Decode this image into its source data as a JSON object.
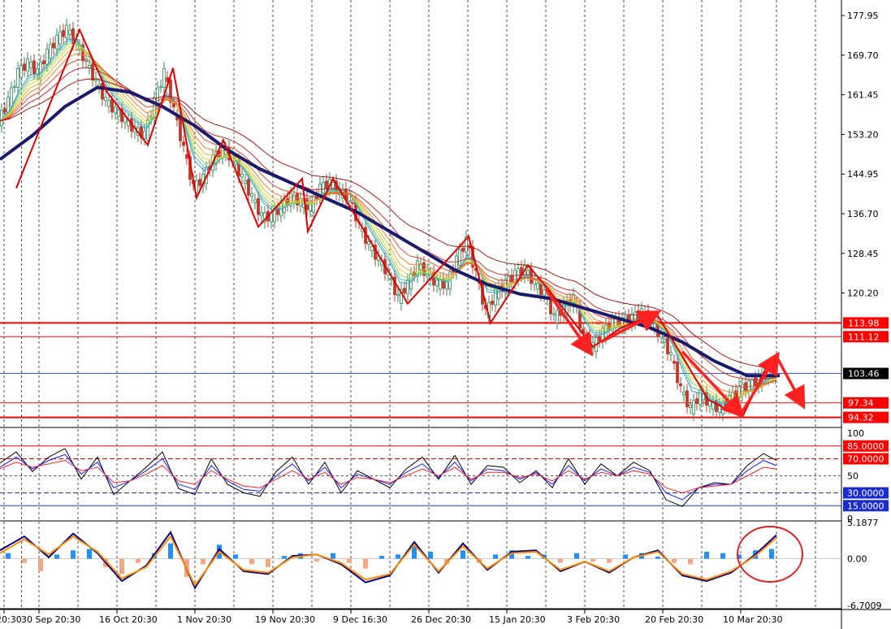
{
  "colors": {
    "background": "#ffffff",
    "grid": "#000000",
    "bull_candle": "#2e8b57",
    "bear_candle": "#c0392b",
    "slow_ma": "#1a1a6e",
    "zigzag": "#e00000",
    "hline_red": "#ff0000",
    "hline_blue": "#0000cc",
    "osc_fast": "#000000",
    "osc_mid": "#1a1aff",
    "osc_slow": "#ff2222",
    "hist_up": "#1e90ff",
    "hist_down": "#f4a582",
    "macd_line": "#00008b",
    "signal_line": "#ff8c00",
    "annotation": "#ff2020"
  },
  "chart_data": [
    {
      "type": "line",
      "panel": "price",
      "ylim": [
        92.9,
        180.5
      ],
      "y_ticks": [
        177.95,
        169.7,
        161.45,
        153.2,
        144.95,
        136.7,
        128.45,
        120.2
      ],
      "x_ticks": [
        "20:30",
        "30 Sep 20:30",
        "16 Oct 20:30",
        "1 Nov 20:30",
        "19 Nov 20:30",
        "9 Dec 16:30",
        "26 Dec 20:30",
        "15 Jan 20:30",
        "3 Feb 20:30",
        "20 Feb 20:30",
        "10 Mar 20:30"
      ],
      "price_labels": [
        {
          "value": 113.98,
          "text": "113.98",
          "style": "red"
        },
        {
          "value": 111.12,
          "text": "111.12",
          "style": "red"
        },
        {
          "value": 103.46,
          "text": "103.46",
          "style": "current"
        },
        {
          "value": 97.34,
          "text": "97.34",
          "style": "red"
        },
        {
          "value": 94.32,
          "text": "94.32",
          "style": "red"
        }
      ],
      "horizontal_lines": [
        {
          "value": 113.98,
          "width": 2
        },
        {
          "value": 111.12,
          "width": 1
        },
        {
          "value": 103.46,
          "width": 1,
          "color": "blue"
        },
        {
          "value": 97.34,
          "width": 1
        },
        {
          "value": 94.32,
          "width": 2
        }
      ],
      "series": [
        {
          "role": "price_close",
          "x": [
            0,
            12,
            24,
            36,
            48,
            60,
            72,
            84,
            96,
            108,
            120,
            132,
            144,
            156,
            168,
            180,
            192,
            204,
            216,
            228,
            240,
            252,
            264,
            276,
            288,
            300,
            312,
            324,
            336,
            348,
            360,
            372,
            384,
            396,
            408,
            420,
            432,
            444,
            456,
            468,
            480,
            492,
            504,
            516,
            528,
            540,
            552,
            564,
            576,
            588,
            600,
            612,
            624,
            636,
            648,
            660,
            672,
            684,
            696,
            708,
            720,
            732,
            744,
            756,
            768,
            780,
            792,
            804,
            816,
            828,
            840,
            852,
            864,
            876,
            888,
            900,
            912,
            924,
            936,
            948,
            956
          ],
          "values": [
            156,
            160,
            166,
            168,
            166,
            170,
            173,
            175,
            172,
            168,
            164,
            160,
            158,
            156,
            154,
            153,
            160,
            166,
            158,
            150,
            142,
            144,
            148,
            150,
            148,
            144,
            140,
            136,
            136,
            138,
            140,
            139,
            138,
            142,
            143,
            141,
            140,
            134,
            130,
            127,
            124,
            119,
            122,
            126,
            124,
            122,
            122,
            127,
            131,
            124,
            116,
            120,
            122,
            124,
            125,
            122,
            120,
            115,
            117,
            119,
            111,
            109,
            112,
            114,
            114,
            115,
            116,
            114,
            111,
            107,
            100,
            96,
            99,
            97,
            96,
            98,
            100,
            101,
            102,
            104,
            103.46
          ]
        },
        {
          "role": "slow_ma",
          "x": [
            0,
            40,
            80,
            120,
            160,
            200,
            240,
            280,
            320,
            360,
            400,
            440,
            480,
            520,
            560,
            600,
            640,
            680,
            720,
            760,
            800,
            840,
            880,
            920,
            960
          ],
          "values": [
            148,
            153,
            159,
            163,
            162,
            159,
            155,
            150,
            146,
            143,
            140,
            137,
            133,
            129,
            125,
            122,
            120,
            119,
            117,
            115,
            113,
            110,
            106,
            103,
            103
          ]
        },
        {
          "role": "zigzag",
          "x": [
            20,
            98,
            132,
            182,
            213,
            242,
            275,
            318,
            372,
            379,
            410,
            502,
            577,
            604,
            650,
            675,
            730,
            765,
            808,
            872,
            914,
            947
          ],
          "values": [
            142,
            175,
            162,
            151,
            167,
            140,
            152,
            134,
            144,
            133,
            144,
            118,
            132,
            114,
            126,
            121,
            109,
            113,
            116,
            98,
            94.4,
            106
          ]
        }
      ],
      "annotation_arrows": [
        {
          "from": [
            672,
            121
          ],
          "to": [
            726,
            108
          ]
        },
        {
          "from": [
            740,
            110
          ],
          "to": [
            808,
            116
          ]
        },
        {
          "from": [
            840,
            108
          ],
          "to": [
            912,
            95
          ]
        },
        {
          "from": [
            912,
            95
          ],
          "to": [
            956,
            107
          ]
        },
        {
          "from": [
            956,
            107
          ],
          "to": [
            988,
            97
          ]
        }
      ]
    },
    {
      "type": "line",
      "panel": "oscillator",
      "ylim": [
        0,
        100
      ],
      "y_ticks": [
        100,
        50,
        0
      ],
      "level_labels": [
        {
          "value": 85,
          "text": "85.0000",
          "style": "red"
        },
        {
          "value": 70,
          "text": "70.0000",
          "style": "red"
        },
        {
          "value": 30,
          "text": "30.0000",
          "style": "blue"
        },
        {
          "value": 15,
          "text": "15.0000",
          "style": "blue"
        }
      ],
      "series": [
        {
          "role": "fast",
          "x": [
            0,
            20,
            40,
            60,
            80,
            100,
            120,
            140,
            160,
            180,
            200,
            220,
            240,
            260,
            280,
            300,
            320,
            340,
            360,
            380,
            400,
            420,
            440,
            460,
            480,
            500,
            520,
            540,
            560,
            580,
            600,
            620,
            640,
            660,
            680,
            700,
            720,
            740,
            760,
            780,
            800,
            820,
            840,
            860,
            880,
            900,
            920,
            940,
            956
          ],
          "values": [
            65,
            78,
            55,
            72,
            82,
            46,
            72,
            28,
            44,
            60,
            78,
            35,
            28,
            70,
            40,
            30,
            26,
            55,
            72,
            40,
            66,
            30,
            56,
            46,
            36,
            58,
            72,
            46,
            74,
            40,
            62,
            60,
            42,
            56,
            36,
            70,
            40,
            64,
            50,
            66,
            56,
            22,
            14,
            36,
            42,
            40,
            62,
            76,
            68
          ]
        },
        {
          "role": "mid",
          "x": [
            0,
            20,
            40,
            60,
            80,
            100,
            120,
            140,
            160,
            180,
            200,
            220,
            240,
            260,
            280,
            300,
            320,
            340,
            360,
            380,
            400,
            420,
            440,
            460,
            480,
            500,
            520,
            540,
            560,
            580,
            600,
            620,
            640,
            660,
            680,
            700,
            720,
            740,
            760,
            780,
            800,
            820,
            840,
            860,
            880,
            900,
            920,
            940,
            956
          ],
          "values": [
            60,
            72,
            58,
            68,
            75,
            52,
            66,
            36,
            44,
            56,
            70,
            40,
            34,
            62,
            44,
            34,
            32,
            50,
            64,
            44,
            60,
            36,
            52,
            46,
            40,
            54,
            64,
            48,
            66,
            44,
            58,
            56,
            46,
            54,
            40,
            62,
            44,
            58,
            50,
            60,
            54,
            30,
            22,
            36,
            40,
            40,
            56,
            68,
            62
          ]
        },
        {
          "role": "slow",
          "x": [
            0,
            20,
            40,
            60,
            80,
            100,
            120,
            140,
            160,
            180,
            200,
            220,
            240,
            260,
            280,
            300,
            320,
            340,
            360,
            380,
            400,
            420,
            440,
            460,
            480,
            500,
            520,
            540,
            560,
            580,
            600,
            620,
            640,
            660,
            680,
            700,
            720,
            740,
            760,
            780,
            800,
            820,
            840,
            860,
            880,
            900,
            920,
            940,
            956
          ],
          "values": [
            58,
            66,
            60,
            64,
            68,
            56,
            60,
            42,
            44,
            52,
            62,
            44,
            40,
            56,
            46,
            38,
            36,
            46,
            56,
            46,
            54,
            40,
            48,
            46,
            42,
            50,
            58,
            50,
            60,
            46,
            54,
            54,
            48,
            52,
            44,
            56,
            46,
            54,
            50,
            56,
            52,
            36,
            30,
            36,
            38,
            40,
            50,
            60,
            58
          ]
        }
      ]
    },
    {
      "type": "bar",
      "panel": "macd",
      "ylim": [
        -6.7009,
        5.1877
      ],
      "y_ticks": [
        5.1877,
        0.0,
        -6.7009
      ],
      "y_tick_labels": [
        "5.1877",
        "0.00",
        "-6.7009"
      ],
      "histogram": {
        "x": [
          10,
          30,
          50,
          70,
          90,
          110,
          130,
          150,
          170,
          190,
          210,
          230,
          250,
          270,
          290,
          310,
          330,
          350,
          370,
          390,
          410,
          430,
          450,
          470,
          490,
          510,
          530,
          550,
          570,
          590,
          610,
          630,
          650,
          670,
          690,
          710,
          730,
          750,
          770,
          790,
          810,
          830,
          850,
          870,
          890,
          910,
          930,
          950
        ],
        "values": [
          0.8,
          -0.6,
          -1.8,
          0.6,
          1.2,
          1.4,
          -1.2,
          -2.2,
          -0.6,
          0.8,
          2.2,
          -2.6,
          -0.8,
          2.0,
          0.6,
          -0.8,
          -1.2,
          0.4,
          0.8,
          -0.4,
          0.8,
          -0.6,
          -1.4,
          0.4,
          0.6,
          1.8,
          1.0,
          -0.8,
          1.2,
          -0.6,
          0.6,
          1.2,
          0.4,
          0.6,
          -0.6,
          0.8,
          -0.4,
          -0.6,
          0.6,
          0.8,
          0.3,
          -0.6,
          -0.8,
          1.0,
          0.8,
          0.6,
          1.2,
          1.4
        ]
      },
      "series": [
        {
          "role": "macd",
          "x": [
            0,
            30,
            60,
            90,
            120,
            150,
            180,
            210,
            240,
            270,
            300,
            330,
            360,
            390,
            420,
            450,
            480,
            510,
            540,
            570,
            600,
            630,
            660,
            690,
            720,
            750,
            780,
            810,
            840,
            870,
            900,
            930,
            956
          ],
          "values": [
            1.2,
            3.2,
            0.2,
            3.6,
            0.8,
            -3.2,
            -1.0,
            3.8,
            -4.2,
            1.4,
            -1.8,
            -2.2,
            0.4,
            0.6,
            -0.8,
            -3.4,
            -2.4,
            2.4,
            -2.0,
            2.2,
            -1.6,
            1.0,
            1.2,
            -1.8,
            -0.4,
            -2.0,
            0.2,
            1.2,
            -2.4,
            -3.2,
            -2.0,
            0.6,
            3.4
          ]
        },
        {
          "role": "signal",
          "x": [
            0,
            30,
            60,
            90,
            120,
            150,
            180,
            210,
            240,
            270,
            300,
            330,
            360,
            390,
            420,
            450,
            480,
            510,
            540,
            570,
            600,
            630,
            660,
            690,
            720,
            750,
            780,
            810,
            840,
            870,
            900,
            930,
            956
          ],
          "values": [
            0.8,
            2.8,
            0.6,
            3.2,
            1.0,
            -2.8,
            -1.2,
            3.2,
            -3.8,
            1.0,
            -1.6,
            -2.0,
            0.2,
            0.6,
            -0.6,
            -3.0,
            -2.2,
            2.0,
            -1.8,
            1.8,
            -1.4,
            0.8,
            1.0,
            -1.6,
            -0.4,
            -1.8,
            0.2,
            1.0,
            -2.2,
            -3.0,
            -1.8,
            0.4,
            3.0
          ]
        }
      ]
    }
  ]
}
